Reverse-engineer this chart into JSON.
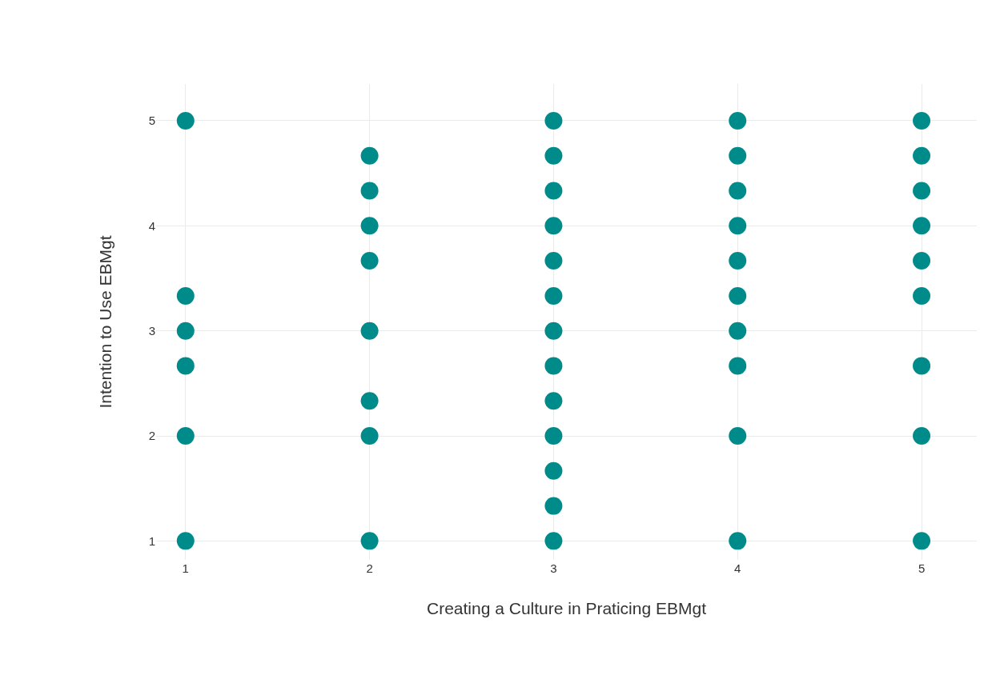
{
  "chart_data": {
    "type": "scatter",
    "xlabel": "Creating a Culture in Praticing EBMgt",
    "ylabel": "Intention to Use EBMgt",
    "x": [
      1,
      1,
      1,
      1,
      1,
      1,
      2,
      2,
      2,
      2,
      2,
      2,
      2,
      2,
      3,
      3,
      3,
      3,
      3,
      3,
      3,
      3,
      3,
      3,
      3,
      3,
      3,
      4,
      4,
      4,
      4,
      4,
      4,
      4,
      4,
      4,
      4,
      5,
      5,
      5,
      5,
      5,
      5,
      5,
      5,
      5
    ],
    "values": [
      5,
      3.333,
      3,
      2.667,
      2,
      1,
      4.667,
      4.333,
      4,
      3.667,
      3,
      2.333,
      2,
      1,
      5,
      4.667,
      4.333,
      4,
      3.667,
      3.333,
      3,
      2.667,
      2.333,
      2,
      1.667,
      1.333,
      1,
      5,
      4.667,
      4.333,
      4,
      3.667,
      3.333,
      3,
      2.667,
      2,
      1,
      5,
      4.667,
      4.333,
      4,
      3.667,
      3.333,
      2.667,
      2,
      1
    ],
    "color": "#008b8b",
    "marker": "circle",
    "grid": true,
    "legend": false,
    "xlim": [
      0.84,
      5.3
    ],
    "xticks": [
      1,
      2,
      3,
      4,
      5
    ],
    "ylim": [
      0.82,
      5.35
    ],
    "yticks": [
      1,
      2,
      3,
      4,
      5
    ]
  }
}
